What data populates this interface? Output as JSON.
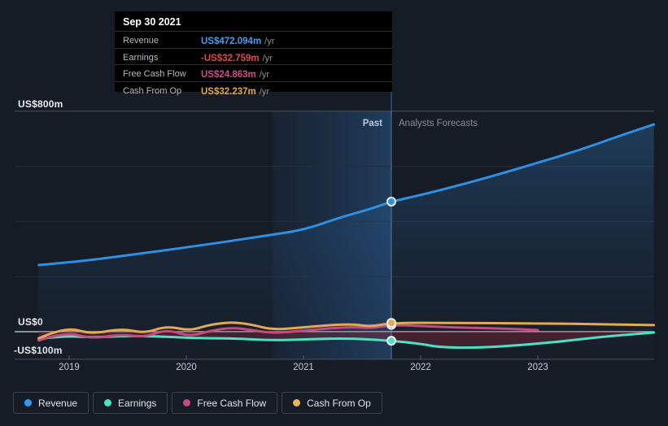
{
  "tooltip": {
    "date": "Sep 30 2021",
    "rows": [
      {
        "label": "Revenue",
        "value": "US$472.094m",
        "unit": "/yr",
        "color": "#3f9ff2"
      },
      {
        "label": "Earnings",
        "value": "-US$32.759m",
        "unit": "/yr",
        "color": "#e04a45"
      },
      {
        "label": "Free Cash Flow",
        "value": "US$24.863m",
        "unit": "/yr",
        "color": "#cc4d8e"
      },
      {
        "label": "Cash From Op",
        "value": "US$32.237m",
        "unit": "/yr",
        "color": "#e6a83b"
      }
    ]
  },
  "y_axis": [
    "US$800m",
    "US$0",
    "-US$100m"
  ],
  "x_axis": [
    "2019",
    "2020",
    "2021",
    "2022",
    "2023"
  ],
  "annotations": {
    "past": "Past",
    "forecast": "Analysts Forecasts"
  },
  "legend": [
    {
      "label": "Revenue",
      "color": "#2e9bf0"
    },
    {
      "label": "Earnings",
      "color": "#4ce0c4"
    },
    {
      "label": "Free Cash Flow",
      "color": "#c9488c"
    },
    {
      "label": "Cash From Op",
      "color": "#e8b45a"
    }
  ],
  "chart_data": {
    "type": "line",
    "unit": "US$ millions per year",
    "ylim": [
      -100,
      800
    ],
    "y_gridlines_m": [
      800,
      600,
      400,
      200,
      0,
      -100
    ],
    "x_ticks": [
      2019,
      2020,
      2021,
      2022,
      2023
    ],
    "past_band": {
      "start": 2020.74,
      "end": 2021.75
    },
    "divider_x": 2021.75,
    "marker_date": "Sep 30 2021",
    "series": [
      {
        "name": "Revenue",
        "color": "#2e8fe3",
        "x": [
          2018.74,
          2019.0,
          2019.3,
          2019.6,
          2020.0,
          2020.35,
          2020.7,
          2021.0,
          2021.3,
          2021.57,
          2021.75,
          2022.0,
          2022.3,
          2022.65,
          2023.0,
          2023.35,
          2023.7,
          2023.99
        ],
        "values": [
          242,
          252,
          266,
          283,
          306,
          327,
          350,
          369,
          413,
          445,
          472.094,
          496,
          528,
          569,
          613,
          658,
          711,
          752
        ]
      },
      {
        "name": "Earnings",
        "color": "#4ee0c4",
        "x": [
          2018.74,
          2018.97,
          2019.19,
          2019.5,
          2019.83,
          2020.1,
          2020.4,
          2020.74,
          2021.05,
          2021.4,
          2021.75,
          2022.0,
          2022.15,
          2022.45,
          2022.75,
          2023.15,
          2023.55,
          2023.99
        ],
        "values": [
          -26,
          -15,
          -21,
          -15,
          -18,
          -24,
          -24,
          -32,
          -27,
          -24,
          -32.759,
          -44,
          -56,
          -59,
          -52,
          -38,
          -18,
          -3
        ]
      },
      {
        "name": "Free Cash Flow",
        "color": "#c64a80",
        "x": [
          2018.74,
          2018.97,
          2019.19,
          2019.45,
          2019.64,
          2019.83,
          2020.03,
          2020.2,
          2020.39,
          2020.56,
          2020.74,
          2021.05,
          2021.4,
          2021.57,
          2021.75,
          2022.0,
          2022.3,
          2022.65,
          2023.0
        ],
        "values": [
          -32,
          0,
          -26,
          -9,
          -21,
          9,
          -18,
          3,
          15,
          6,
          -6,
          6,
          18,
          12,
          24.863,
          21,
          15,
          12,
          6
        ]
      },
      {
        "name": "Cash From Op",
        "color": "#e3aa52",
        "x": [
          2018.74,
          2018.97,
          2019.19,
          2019.45,
          2019.64,
          2019.83,
          2020.03,
          2020.2,
          2020.39,
          2020.56,
          2020.74,
          2021.05,
          2021.4,
          2021.57,
          2021.75,
          2022.3,
          2023.0,
          2023.55,
          2023.99
        ],
        "values": [
          -24,
          18,
          -9,
          12,
          -6,
          21,
          3,
          26,
          35,
          26,
          6,
          18,
          29,
          18,
          32.237,
          32,
          30,
          27,
          24
        ]
      }
    ],
    "markers_at_divider": [
      {
        "series": "Free Cash Flow",
        "value": 24.863
      },
      {
        "series": "Cash From Op",
        "value": 32.237
      },
      {
        "series": "Earnings",
        "value": -32.759
      },
      {
        "series": "Revenue",
        "value": 472.094
      }
    ]
  }
}
